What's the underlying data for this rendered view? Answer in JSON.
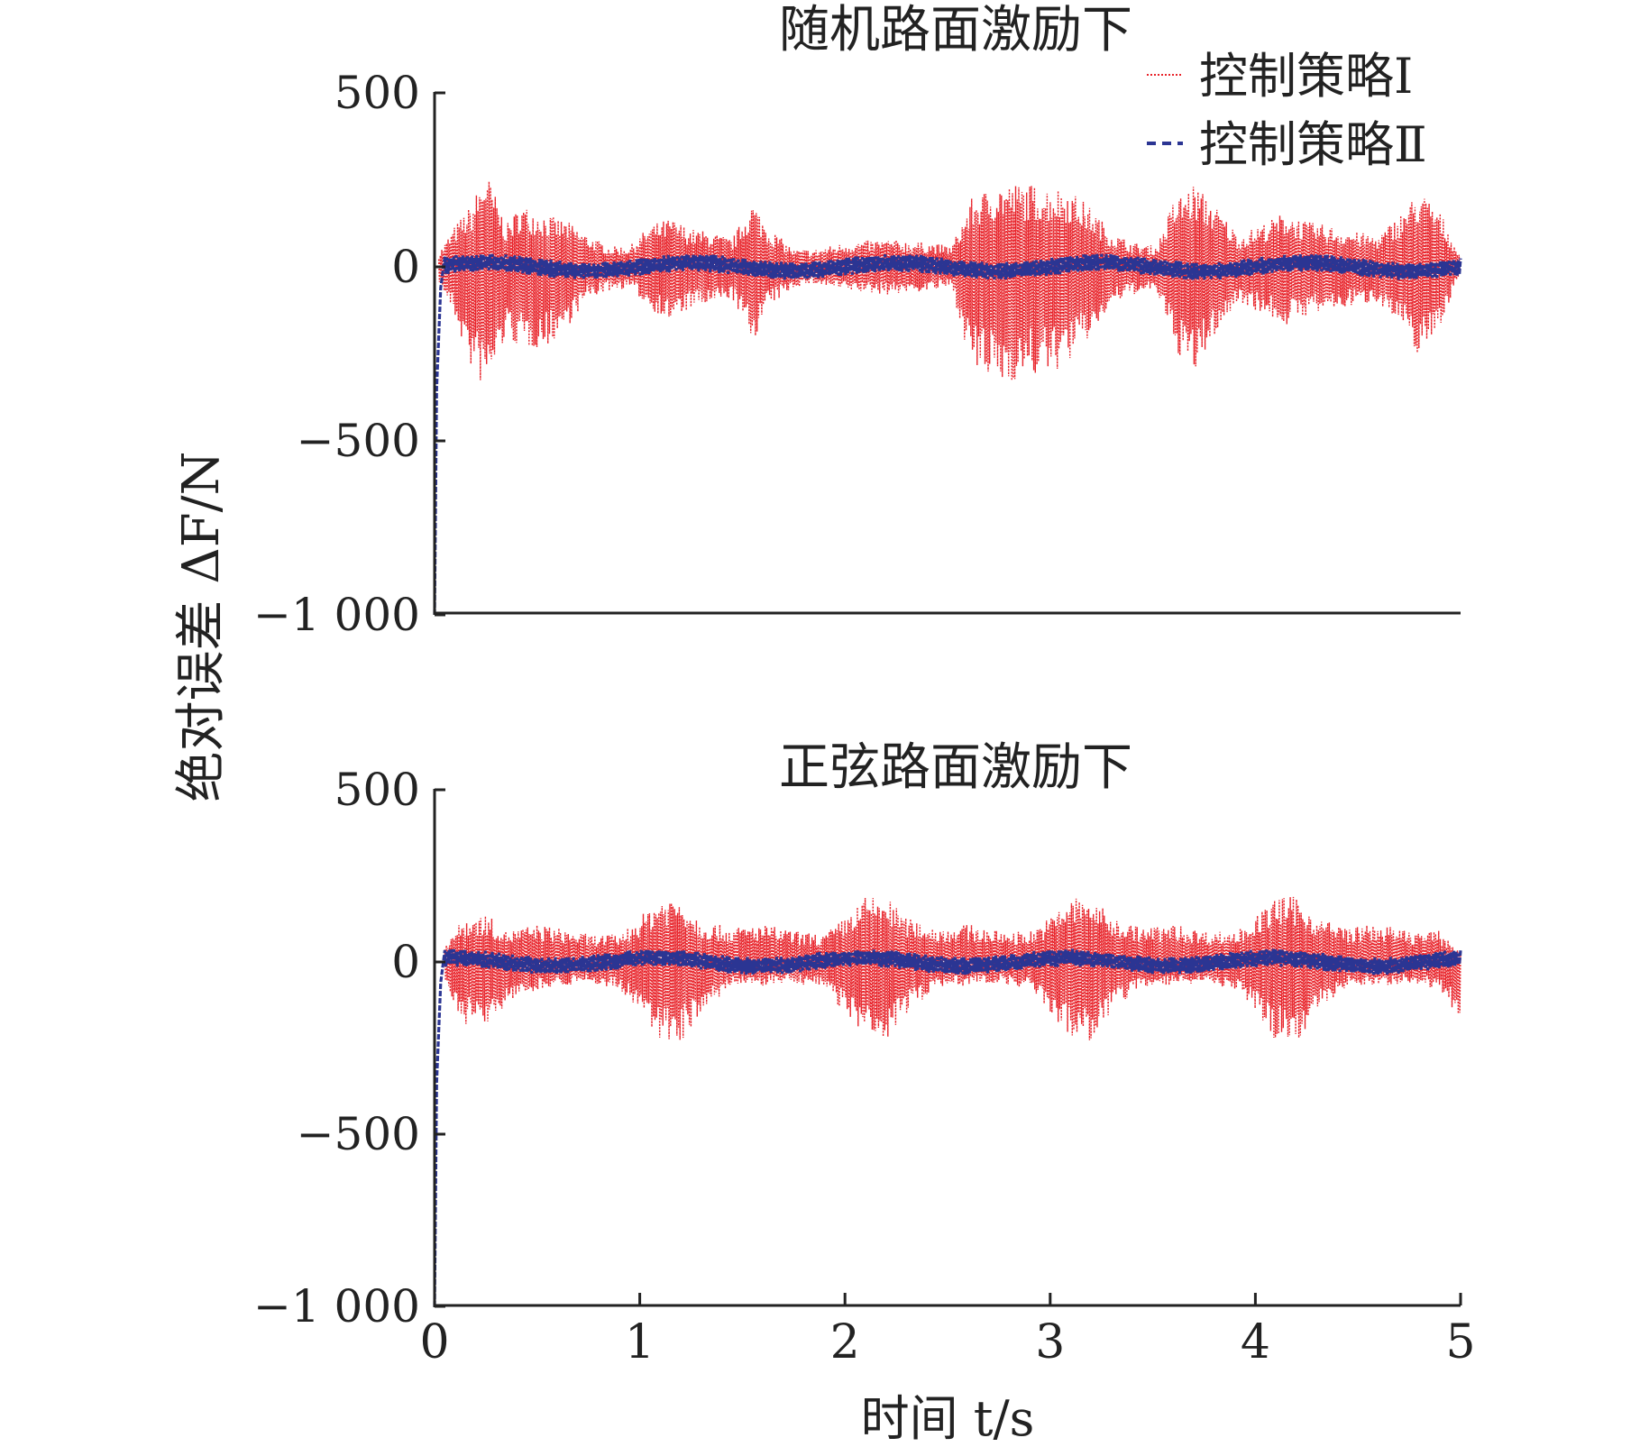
{
  "chart_data": {
    "type": "line",
    "ylabel": "绝对误差 ΔF/N",
    "xlabel": "时间 t/s",
    "x_ticks": [
      0,
      1,
      2,
      3,
      4,
      5
    ],
    "x_tick_labels": [
      "0",
      "1",
      "2",
      "3",
      "4",
      "5"
    ],
    "xlim": [
      0,
      5
    ],
    "y_ticks": [
      -1000,
      -500,
      0,
      500
    ],
    "y_tick_labels": [
      "−1 000",
      "−500",
      "0",
      "500"
    ],
    "grid": false,
    "legend": {
      "placement": "top-right",
      "entries": [
        {
          "name": "控制策略Ⅰ",
          "color": "#e8232a",
          "style": "dotted"
        },
        {
          "name": "控制策略Ⅱ",
          "color": "#2b3593",
          "style": "dashed"
        }
      ]
    },
    "panels": [
      {
        "title": "随机路面激励下",
        "ylim": [
          -1000,
          500
        ],
        "series": [
          {
            "name": "控制策略Ⅰ",
            "color": "#e8232a",
            "description": "oscillating error, envelope (max, min) in N vs time",
            "envelope": {
              "t": [
                0.02,
                0.1,
                0.18,
                0.25,
                0.35,
                0.42,
                0.55,
                0.65,
                0.75,
                0.85,
                0.95,
                1.05,
                1.15,
                1.25,
                1.35,
                1.45,
                1.55,
                1.62,
                1.75,
                1.85,
                2.0,
                2.2,
                2.4,
                2.52,
                2.62,
                2.75,
                2.88,
                3.0,
                3.08,
                3.2,
                3.3,
                3.4,
                3.52,
                3.6,
                3.7,
                3.8,
                3.92,
                4.05,
                4.15,
                4.25,
                4.35,
                4.5,
                4.6,
                4.7,
                4.8,
                4.9,
                5.0
              ],
              "max": [
                40,
                120,
                180,
                280,
                120,
                180,
                150,
                130,
                90,
                60,
                60,
                120,
                140,
                110,
                100,
                80,
                190,
                120,
                50,
                50,
                70,
                80,
                70,
                60,
                200,
                240,
                240,
                230,
                230,
                170,
                100,
                70,
                60,
                190,
                240,
                180,
                90,
                130,
                160,
                130,
                120,
                100,
                90,
                150,
                220,
                160,
                30
              ],
              "min": [
                -40,
                -150,
                -300,
                -360,
                -200,
                -240,
                -230,
                -170,
                -90,
                -70,
                -60,
                -120,
                -160,
                -120,
                -110,
                -90,
                -220,
                -120,
                -60,
                -50,
                -70,
                -80,
                -70,
                -60,
                -300,
                -340,
                -320,
                -310,
                -280,
                -200,
                -110,
                -80,
                -70,
                -230,
                -320,
                -200,
                -100,
                -140,
                -170,
                -140,
                -130,
                -110,
                -100,
                -170,
                -260,
                -170,
                -20
              ]
            }
          },
          {
            "name": "控制策略Ⅱ",
            "color": "#2b3593",
            "description": "small error, initial transient from about -1000 to 0 within 0.05 s, then band about ±30 N"
          }
        ]
      },
      {
        "title": "正弦路面激励下",
        "ylim": [
          -1000,
          500
        ],
        "series": [
          {
            "name": "控制策略Ⅰ",
            "color": "#e8232a",
            "description": "oscillating error with periodic bursts near t = 1.1, 2.1, 3.1, 4.1 s",
            "envelope": {
              "t": [
                0.05,
                0.15,
                0.25,
                0.35,
                0.5,
                0.6,
                0.75,
                0.9,
                1.0,
                1.1,
                1.2,
                1.3,
                1.45,
                1.6,
                1.75,
                1.9,
                2.0,
                2.1,
                2.2,
                2.3,
                2.45,
                2.6,
                2.75,
                2.9,
                3.0,
                3.1,
                3.2,
                3.3,
                3.45,
                3.6,
                3.75,
                3.9,
                4.0,
                4.1,
                4.2,
                4.3,
                4.45,
                4.6,
                4.75,
                4.9,
                5.0
              ],
              "max": [
                60,
                130,
                140,
                90,
                110,
                100,
                80,
                80,
                130,
                190,
                190,
                120,
                100,
                110,
                90,
                80,
                130,
                190,
                190,
                130,
                100,
                110,
                90,
                90,
                130,
                190,
                190,
                130,
                100,
                110,
                90,
                90,
                130,
                190,
                190,
                130,
                100,
                110,
                90,
                90,
                30
              ],
              "min": [
                -80,
                -180,
                -190,
                -120,
                -80,
                -70,
                -60,
                -80,
                -150,
                -230,
                -230,
                -150,
                -70,
                -70,
                -60,
                -80,
                -150,
                -230,
                -230,
                -150,
                -70,
                -70,
                -60,
                -80,
                -150,
                -230,
                -230,
                -150,
                -70,
                -70,
                -60,
                -80,
                -150,
                -230,
                -230,
                -150,
                -70,
                -70,
                -60,
                -80,
                -170
              ]
            }
          },
          {
            "name": "控制策略Ⅱ",
            "color": "#2b3593",
            "description": "small error, initial transient from about -1000 to 0 within 0.05 s, then band about ±30 N"
          }
        ]
      }
    ]
  }
}
